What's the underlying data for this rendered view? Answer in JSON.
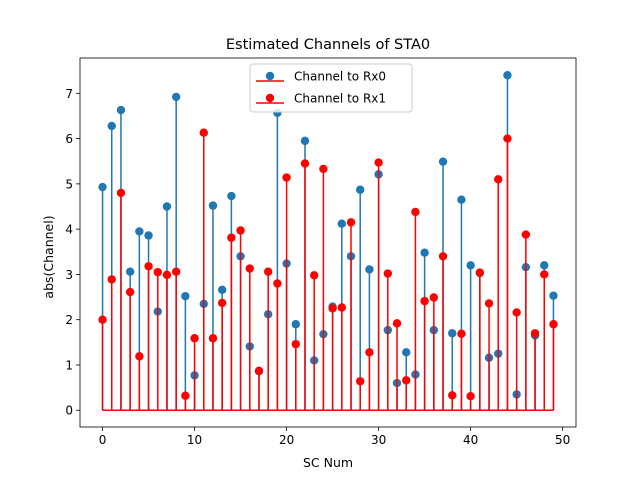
{
  "chart_data": {
    "type": "stem",
    "title": "Estimated Channels of STA0",
    "xlabel": "SC Num",
    "ylabel": "abs(Channel)",
    "xlim": [
      -2.45,
      51.45
    ],
    "ylim": [
      -0.37,
      7.78
    ],
    "xticks": [
      0,
      10,
      20,
      30,
      40,
      50
    ],
    "yticks": [
      0,
      1,
      2,
      3,
      4,
      5,
      6,
      7
    ],
    "legend_position": "upper-center",
    "x": [
      0,
      1,
      2,
      3,
      4,
      5,
      6,
      7,
      8,
      9,
      10,
      11,
      12,
      13,
      14,
      15,
      16,
      17,
      18,
      19,
      20,
      21,
      22,
      23,
      24,
      25,
      26,
      27,
      28,
      29,
      30,
      31,
      32,
      33,
      34,
      35,
      36,
      37,
      38,
      39,
      40,
      41,
      42,
      43,
      44,
      45,
      46,
      47,
      48,
      49
    ],
    "series": [
      {
        "name": "Channel to Rx0",
        "color": "#1f77b4",
        "values": [
          4.93,
          6.28,
          6.63,
          3.06,
          3.95,
          3.86,
          2.18,
          4.5,
          6.92,
          2.52,
          0.77,
          2.35,
          4.52,
          2.66,
          4.73,
          3.4,
          1.41,
          0.86,
          2.12,
          6.57,
          3.24,
          1.9,
          5.95,
          1.1,
          1.68,
          2.29,
          4.12,
          3.4,
          4.87,
          3.11,
          5.21,
          1.77,
          0.6,
          1.28,
          0.79,
          3.48,
          1.77,
          5.49,
          1.7,
          4.65,
          3.2,
          3.03,
          1.16,
          1.25,
          7.4,
          0.35,
          3.16,
          1.65,
          3.2,
          2.53
        ]
      },
      {
        "name": "Channel to Rx1",
        "color": "#ff0000",
        "values": [
          2.0,
          2.89,
          4.8,
          2.61,
          1.19,
          3.18,
          3.05,
          2.99,
          3.06,
          0.32,
          1.59,
          6.13,
          1.59,
          2.37,
          3.81,
          3.97,
          3.13,
          0.87,
          3.06,
          2.8,
          5.14,
          1.46,
          5.45,
          2.98,
          5.33,
          2.25,
          2.27,
          4.15,
          0.64,
          1.28,
          5.47,
          3.02,
          1.92,
          0.66,
          4.38,
          2.41,
          2.49,
          3.4,
          0.33,
          1.69,
          0.31,
          3.04,
          2.36,
          5.1,
          6.0,
          2.16,
          3.88,
          1.7,
          3.0,
          1.9
        ]
      }
    ]
  }
}
